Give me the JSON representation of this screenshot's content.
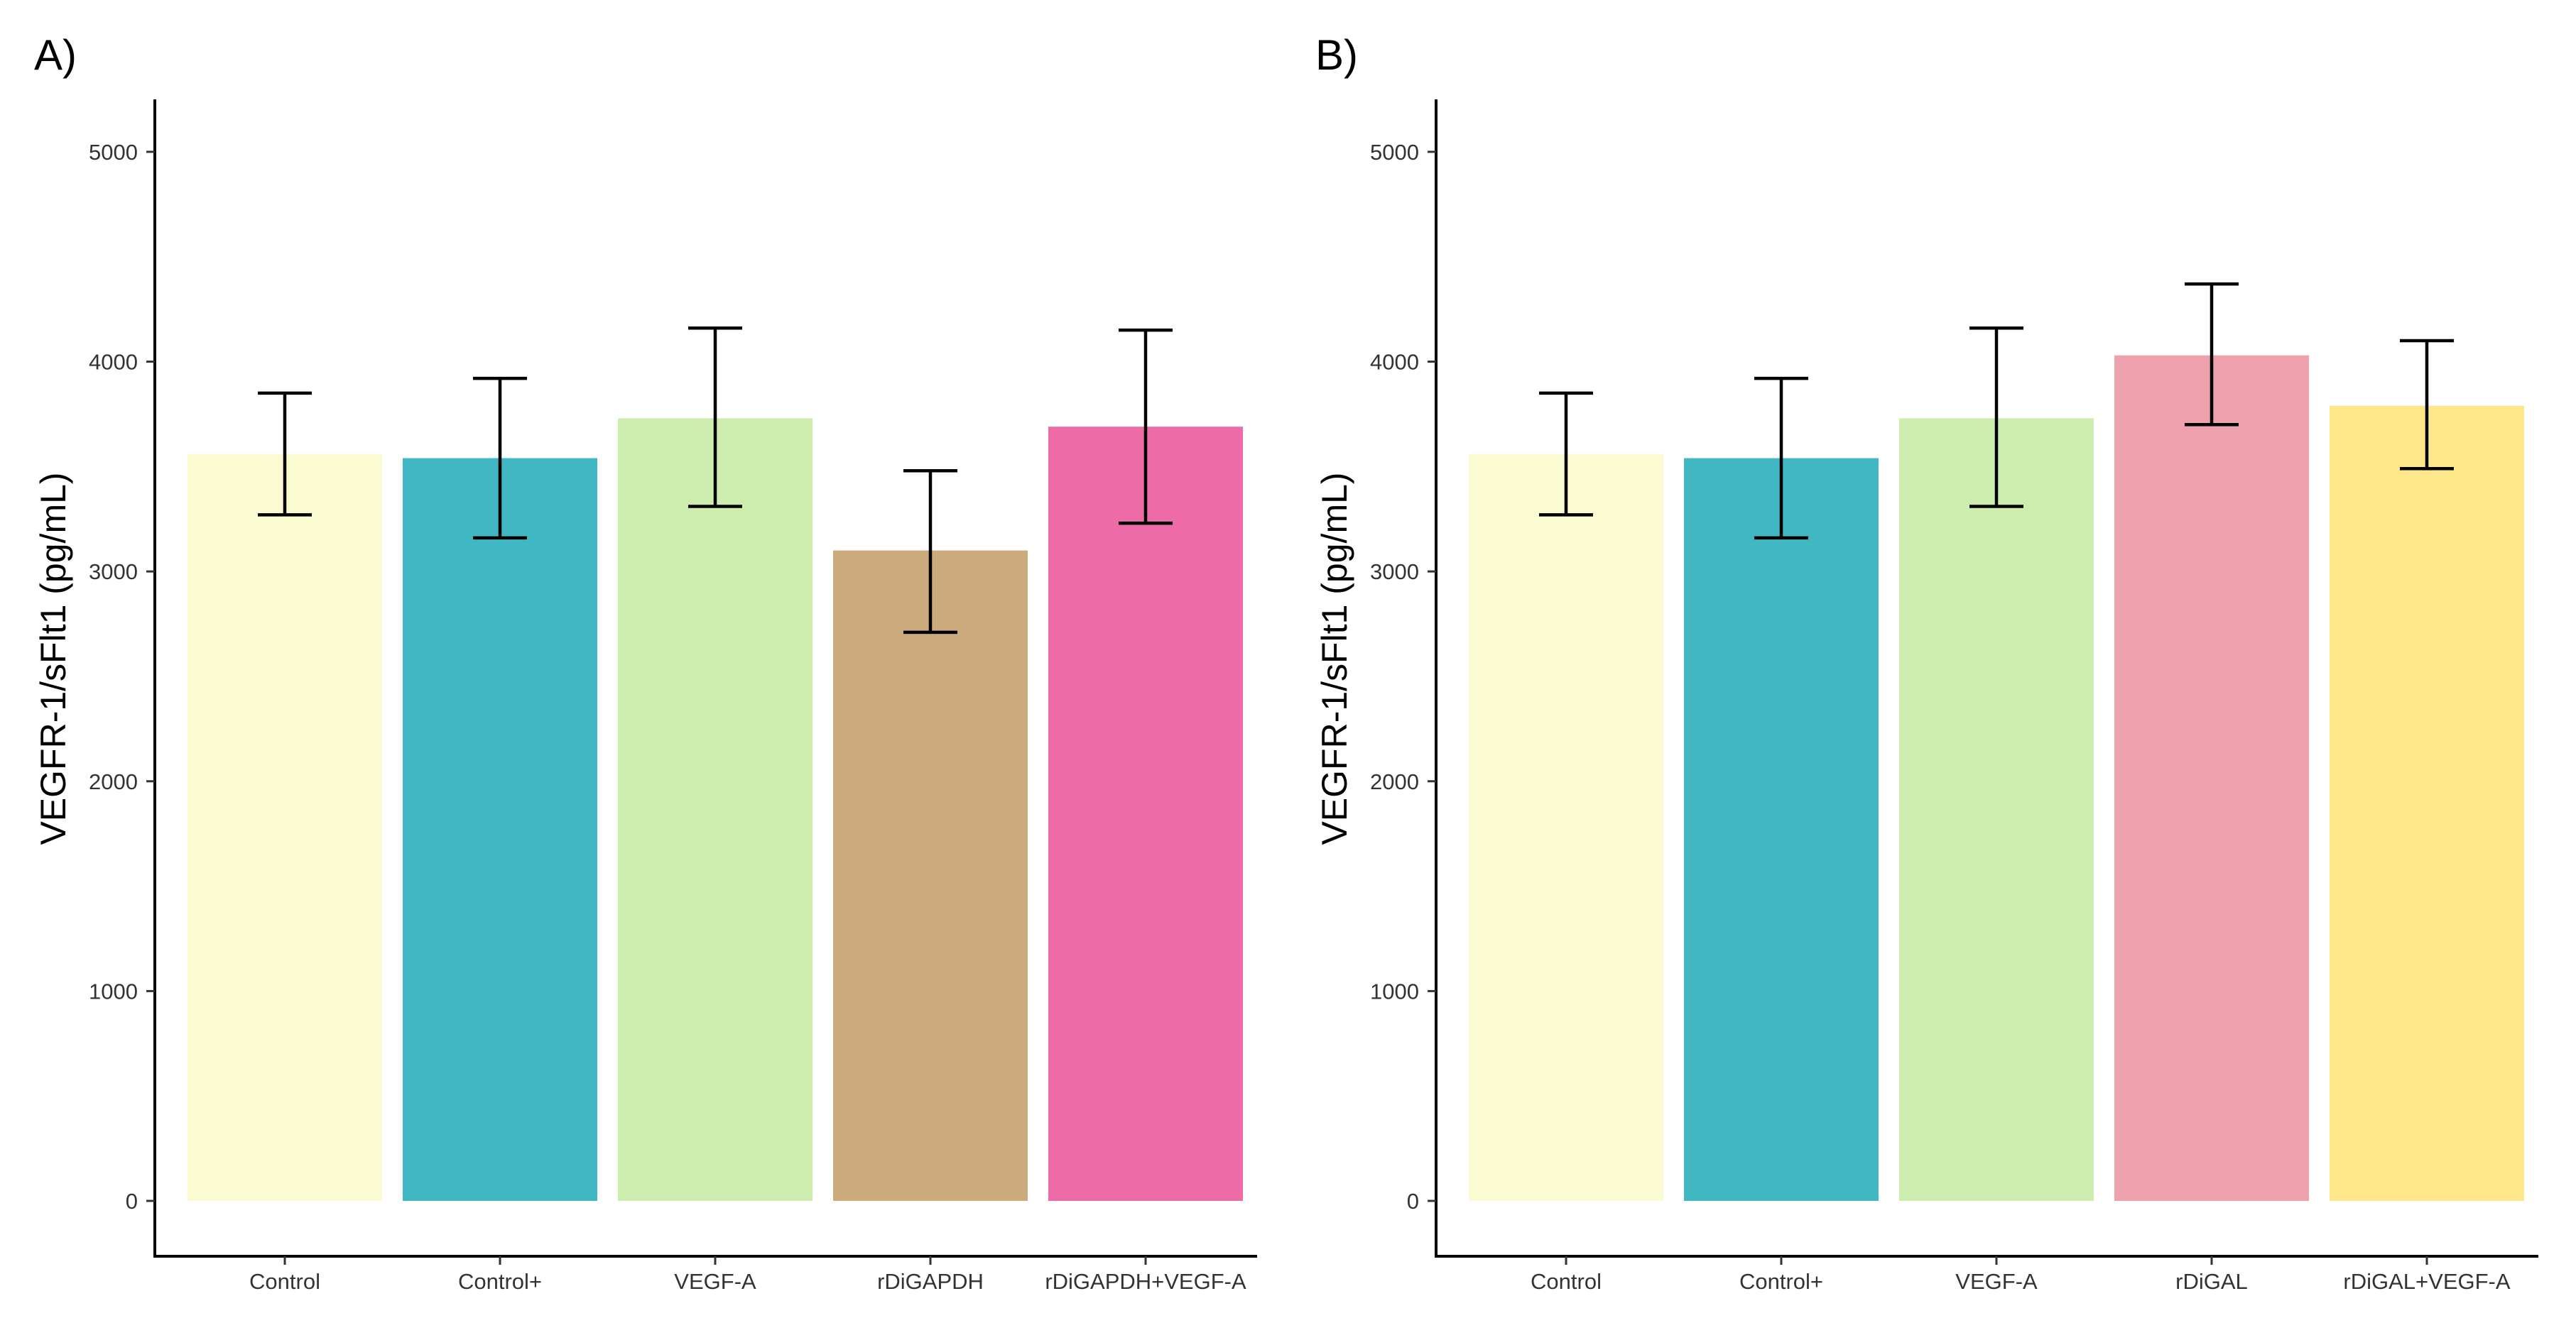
{
  "chart_data": [
    {
      "type": "bar",
      "panel_label": "A)",
      "title": "",
      "xlabel": "",
      "ylabel": "VEGFR-1/sFlt1 (pg/mL)",
      "ylim": [
        0,
        5250
      ],
      "yticks": [
        0,
        1000,
        2000,
        3000,
        4000,
        5000
      ],
      "grid": false,
      "categories": [
        "Control",
        "Control+",
        "VEGF-A",
        "rDiGAPDH",
        "rDiGAPDH+VEGF-A"
      ],
      "values": [
        3560,
        3540,
        3730,
        3100,
        3690
      ],
      "err_low": [
        3270,
        3160,
        3310,
        2710,
        3230
      ],
      "err_high": [
        3850,
        3920,
        4160,
        3480,
        4150
      ],
      "colors": [
        "#FAFBD1",
        "#42B7C4",
        "#CCEDAE",
        "#CBAA7B",
        "#ED6CA7"
      ]
    },
    {
      "type": "bar",
      "panel_label": "B)",
      "title": "",
      "xlabel": "",
      "ylabel": "VEGFR-1/sFlt1 (pg/mL)",
      "ylim": [
        0,
        5250
      ],
      "yticks": [
        0,
        1000,
        2000,
        3000,
        4000,
        5000
      ],
      "grid": false,
      "categories": [
        "Control",
        "Control+",
        "VEGF-A",
        "rDiGAL",
        "rDiGAL+VEGF-A"
      ],
      "values": [
        3560,
        3540,
        3730,
        4030,
        3790
      ],
      "err_low": [
        3270,
        3160,
        3310,
        3700,
        3490
      ],
      "err_high": [
        3850,
        3920,
        4160,
        4370,
        4100
      ],
      "colors": [
        "#FAFBD1",
        "#42B7C4",
        "#CCEDAE",
        "#EDA1AC",
        "#FDE78A"
      ]
    }
  ]
}
